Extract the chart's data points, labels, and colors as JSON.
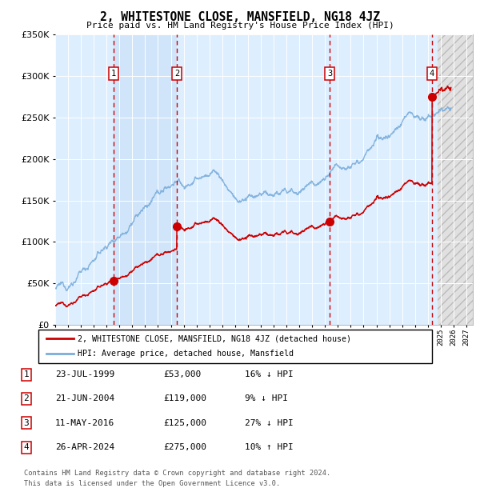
{
  "title": "2, WHITESTONE CLOSE, MANSFIELD, NG18 4JZ",
  "subtitle": "Price paid vs. HM Land Registry's House Price Index (HPI)",
  "legend_line1": "2, WHITESTONE CLOSE, MANSFIELD, NG18 4JZ (detached house)",
  "legend_line2": "HPI: Average price, detached house, Mansfield",
  "footer1": "Contains HM Land Registry data © Crown copyright and database right 2024.",
  "footer2": "This data is licensed under the Open Government Licence v3.0.",
  "sales": [
    {
      "num": 1,
      "date_label": "23-JUL-1999",
      "price": 53000,
      "year": 1999.55,
      "hpi_pct": "16% ↓ HPI"
    },
    {
      "num": 2,
      "date_label": "21-JUN-2004",
      "price": 119000,
      "year": 2004.46,
      "hpi_pct": "9% ↓ HPI"
    },
    {
      "num": 3,
      "date_label": "11-MAY-2016",
      "price": 125000,
      "year": 2016.36,
      "hpi_pct": "27% ↓ HPI"
    },
    {
      "num": 4,
      "date_label": "26-APR-2024",
      "price": 275000,
      "year": 2024.32,
      "hpi_pct": "10% ↑ HPI"
    }
  ],
  "hpi_color": "#7aaddb",
  "price_color": "#cc0000",
  "dot_color": "#cc0000",
  "vline_color": "#cc0000",
  "box_color": "#cc0000",
  "background_chart": "#ddeeff",
  "ylim": [
    0,
    350000
  ],
  "xlim_start": 1995.0,
  "xlim_end": 2027.5,
  "future_start": 2024.75
}
